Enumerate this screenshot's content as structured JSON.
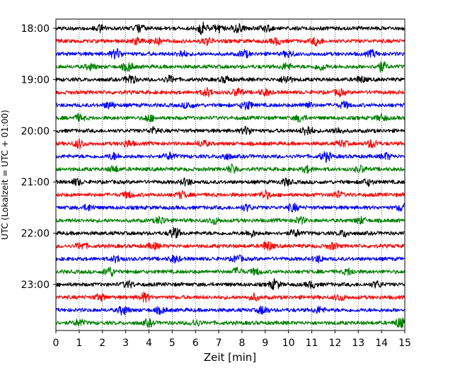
{
  "chart_data": {
    "type": "line",
    "title": "",
    "xlabel": "Zeit  [min]",
    "ylabel": "UTC (Lokalzeit = UTC + 01:00)",
    "xlim": [
      0,
      15
    ],
    "x_ticks": [
      "0",
      "1",
      "2",
      "3",
      "4",
      "5",
      "6",
      "7",
      "8",
      "9",
      "10",
      "11",
      "12",
      "13",
      "14",
      "15"
    ],
    "y_tick_labels": [
      "18:00",
      "19:00",
      "20:00",
      "21:00",
      "22:00",
      "23:00"
    ],
    "grid": "vertical dotted lines at each minute",
    "trace_colors": [
      "#000000",
      "#ff0000",
      "#0000ff",
      "#008000"
    ],
    "rows": [
      "18:00",
      "18:15",
      "18:30",
      "18:45",
      "19:00",
      "19:15",
      "19:30",
      "19:45",
      "20:00",
      "20:15",
      "20:30",
      "20:45",
      "21:00",
      "21:15",
      "21:30",
      "21:45",
      "22:00",
      "22:15",
      "22:30",
      "22:45",
      "23:00",
      "23:15",
      "23:30",
      "23:45"
    ],
    "series": [
      {
        "values": [
          [
            6.3,
            2.0
          ],
          [
            7.0,
            1.4
          ],
          [
            7.8,
            1.5
          ],
          [
            1.9,
            1.0
          ],
          [
            3.6,
            1.0
          ],
          [
            9.0,
            1.1
          ]
        ]
      },
      {
        "values": [
          [
            4.3,
            1.4
          ],
          [
            11.2,
            1.3
          ],
          [
            3.5,
            1.0
          ],
          [
            6.5,
            1.1
          ],
          [
            9.5,
            1.0
          ]
        ]
      },
      {
        "values": [
          [
            2.6,
            1.7
          ],
          [
            5.4,
            1.0
          ],
          [
            8.1,
            1.1
          ],
          [
            10.0,
            1.0
          ],
          [
            13.6,
            1.0
          ]
        ]
      },
      {
        "values": [
          [
            3.1,
            1.4
          ],
          [
            1.5,
            1.0
          ],
          [
            9.9,
            1.1
          ],
          [
            11.4,
            1.1
          ],
          [
            14.0,
            1.6
          ]
        ]
      },
      {
        "values": [
          [
            3.2,
            1.6
          ],
          [
            4.9,
            1.1
          ],
          [
            7.3,
            1.0
          ],
          [
            9.9,
            1.3
          ],
          [
            13.1,
            1.0
          ]
        ]
      },
      {
        "values": [
          [
            6.5,
            1.3
          ],
          [
            7.8,
            1.3
          ],
          [
            9.0,
            1.0
          ],
          [
            12.2,
            1.0
          ]
        ]
      },
      {
        "values": [
          [
            2.3,
            1.1
          ],
          [
            5.7,
            1.0
          ],
          [
            8.2,
            1.5
          ],
          [
            10.8,
            1.0
          ],
          [
            12.4,
            1.0
          ]
        ]
      },
      {
        "values": [
          [
            1.0,
            1.0
          ],
          [
            4.0,
            1.1
          ],
          [
            10.5,
            1.1
          ],
          [
            14.0,
            1.0
          ]
        ]
      },
      {
        "values": [
          [
            4.2,
            1.0
          ],
          [
            8.2,
            1.3
          ],
          [
            10.8,
            1.8
          ],
          [
            12.1,
            1.0
          ]
        ]
      },
      {
        "values": [
          [
            1.0,
            1.4
          ],
          [
            3.1,
            1.0
          ],
          [
            6.3,
            1.0
          ],
          [
            12.3,
            1.0
          ],
          [
            13.6,
            1.3
          ]
        ]
      },
      {
        "values": [
          [
            2.5,
            1.0
          ],
          [
            4.9,
            1.1
          ],
          [
            7.3,
            1.0
          ],
          [
            11.6,
            1.6
          ],
          [
            14.2,
            1.0
          ]
        ]
      },
      {
        "values": [
          [
            2.5,
            1.0
          ],
          [
            7.6,
            1.5
          ],
          [
            10.8,
            1.0
          ],
          [
            13.1,
            1.0
          ]
        ]
      },
      {
        "values": [
          [
            0.9,
            1.0
          ],
          [
            5.6,
            1.1
          ],
          [
            9.9,
            1.1
          ],
          [
            13.4,
            1.0
          ]
        ]
      },
      {
        "values": [
          [
            3.1,
            1.0
          ],
          [
            5.4,
            1.0
          ],
          [
            9.0,
            1.3
          ],
          [
            12.1,
            1.0
          ]
        ]
      },
      {
        "values": [
          [
            1.4,
            1.0
          ],
          [
            8.2,
            1.0
          ],
          [
            10.2,
            1.3
          ],
          [
            14.9,
            1.3
          ]
        ]
      },
      {
        "values": [
          [
            4.5,
            1.3
          ],
          [
            6.8,
            1.1
          ],
          [
            10.5,
            1.1
          ],
          [
            13.1,
            1.0
          ]
        ]
      },
      {
        "values": [
          [
            5.1,
            1.8
          ],
          [
            8.4,
            1.0
          ],
          [
            10.3,
            1.1
          ],
          [
            12.4,
            1.0
          ]
        ]
      },
      {
        "values": [
          [
            1.1,
            1.1
          ],
          [
            4.2,
            1.0
          ],
          [
            9.1,
            1.6
          ],
          [
            11.9,
            1.0
          ]
        ]
      },
      {
        "values": [
          [
            2.6,
            1.0
          ],
          [
            5.1,
            1.1
          ],
          [
            7.8,
            1.1
          ],
          [
            11.3,
            1.0
          ]
        ]
      },
      {
        "values": [
          [
            2.3,
            1.7
          ],
          [
            7.8,
            1.1
          ],
          [
            8.6,
            1.0
          ],
          [
            12.6,
            1.0
          ]
        ]
      },
      {
        "values": [
          [
            3.1,
            1.1
          ],
          [
            9.4,
            1.6
          ],
          [
            11.0,
            1.0
          ],
          [
            13.8,
            1.0
          ]
        ]
      },
      {
        "values": [
          [
            1.9,
            1.0
          ],
          [
            3.8,
            1.4
          ],
          [
            8.5,
            1.0
          ],
          [
            12.2,
            1.0
          ]
        ]
      },
      {
        "values": [
          [
            2.9,
            1.5
          ],
          [
            4.5,
            1.0
          ],
          [
            8.9,
            1.3
          ],
          [
            11.3,
            1.0
          ]
        ]
      },
      {
        "values": [
          [
            1.0,
            1.0
          ],
          [
            4.0,
            1.1
          ],
          [
            6.0,
            1.0
          ],
          [
            14.8,
            1.7
          ]
        ]
      }
    ]
  }
}
